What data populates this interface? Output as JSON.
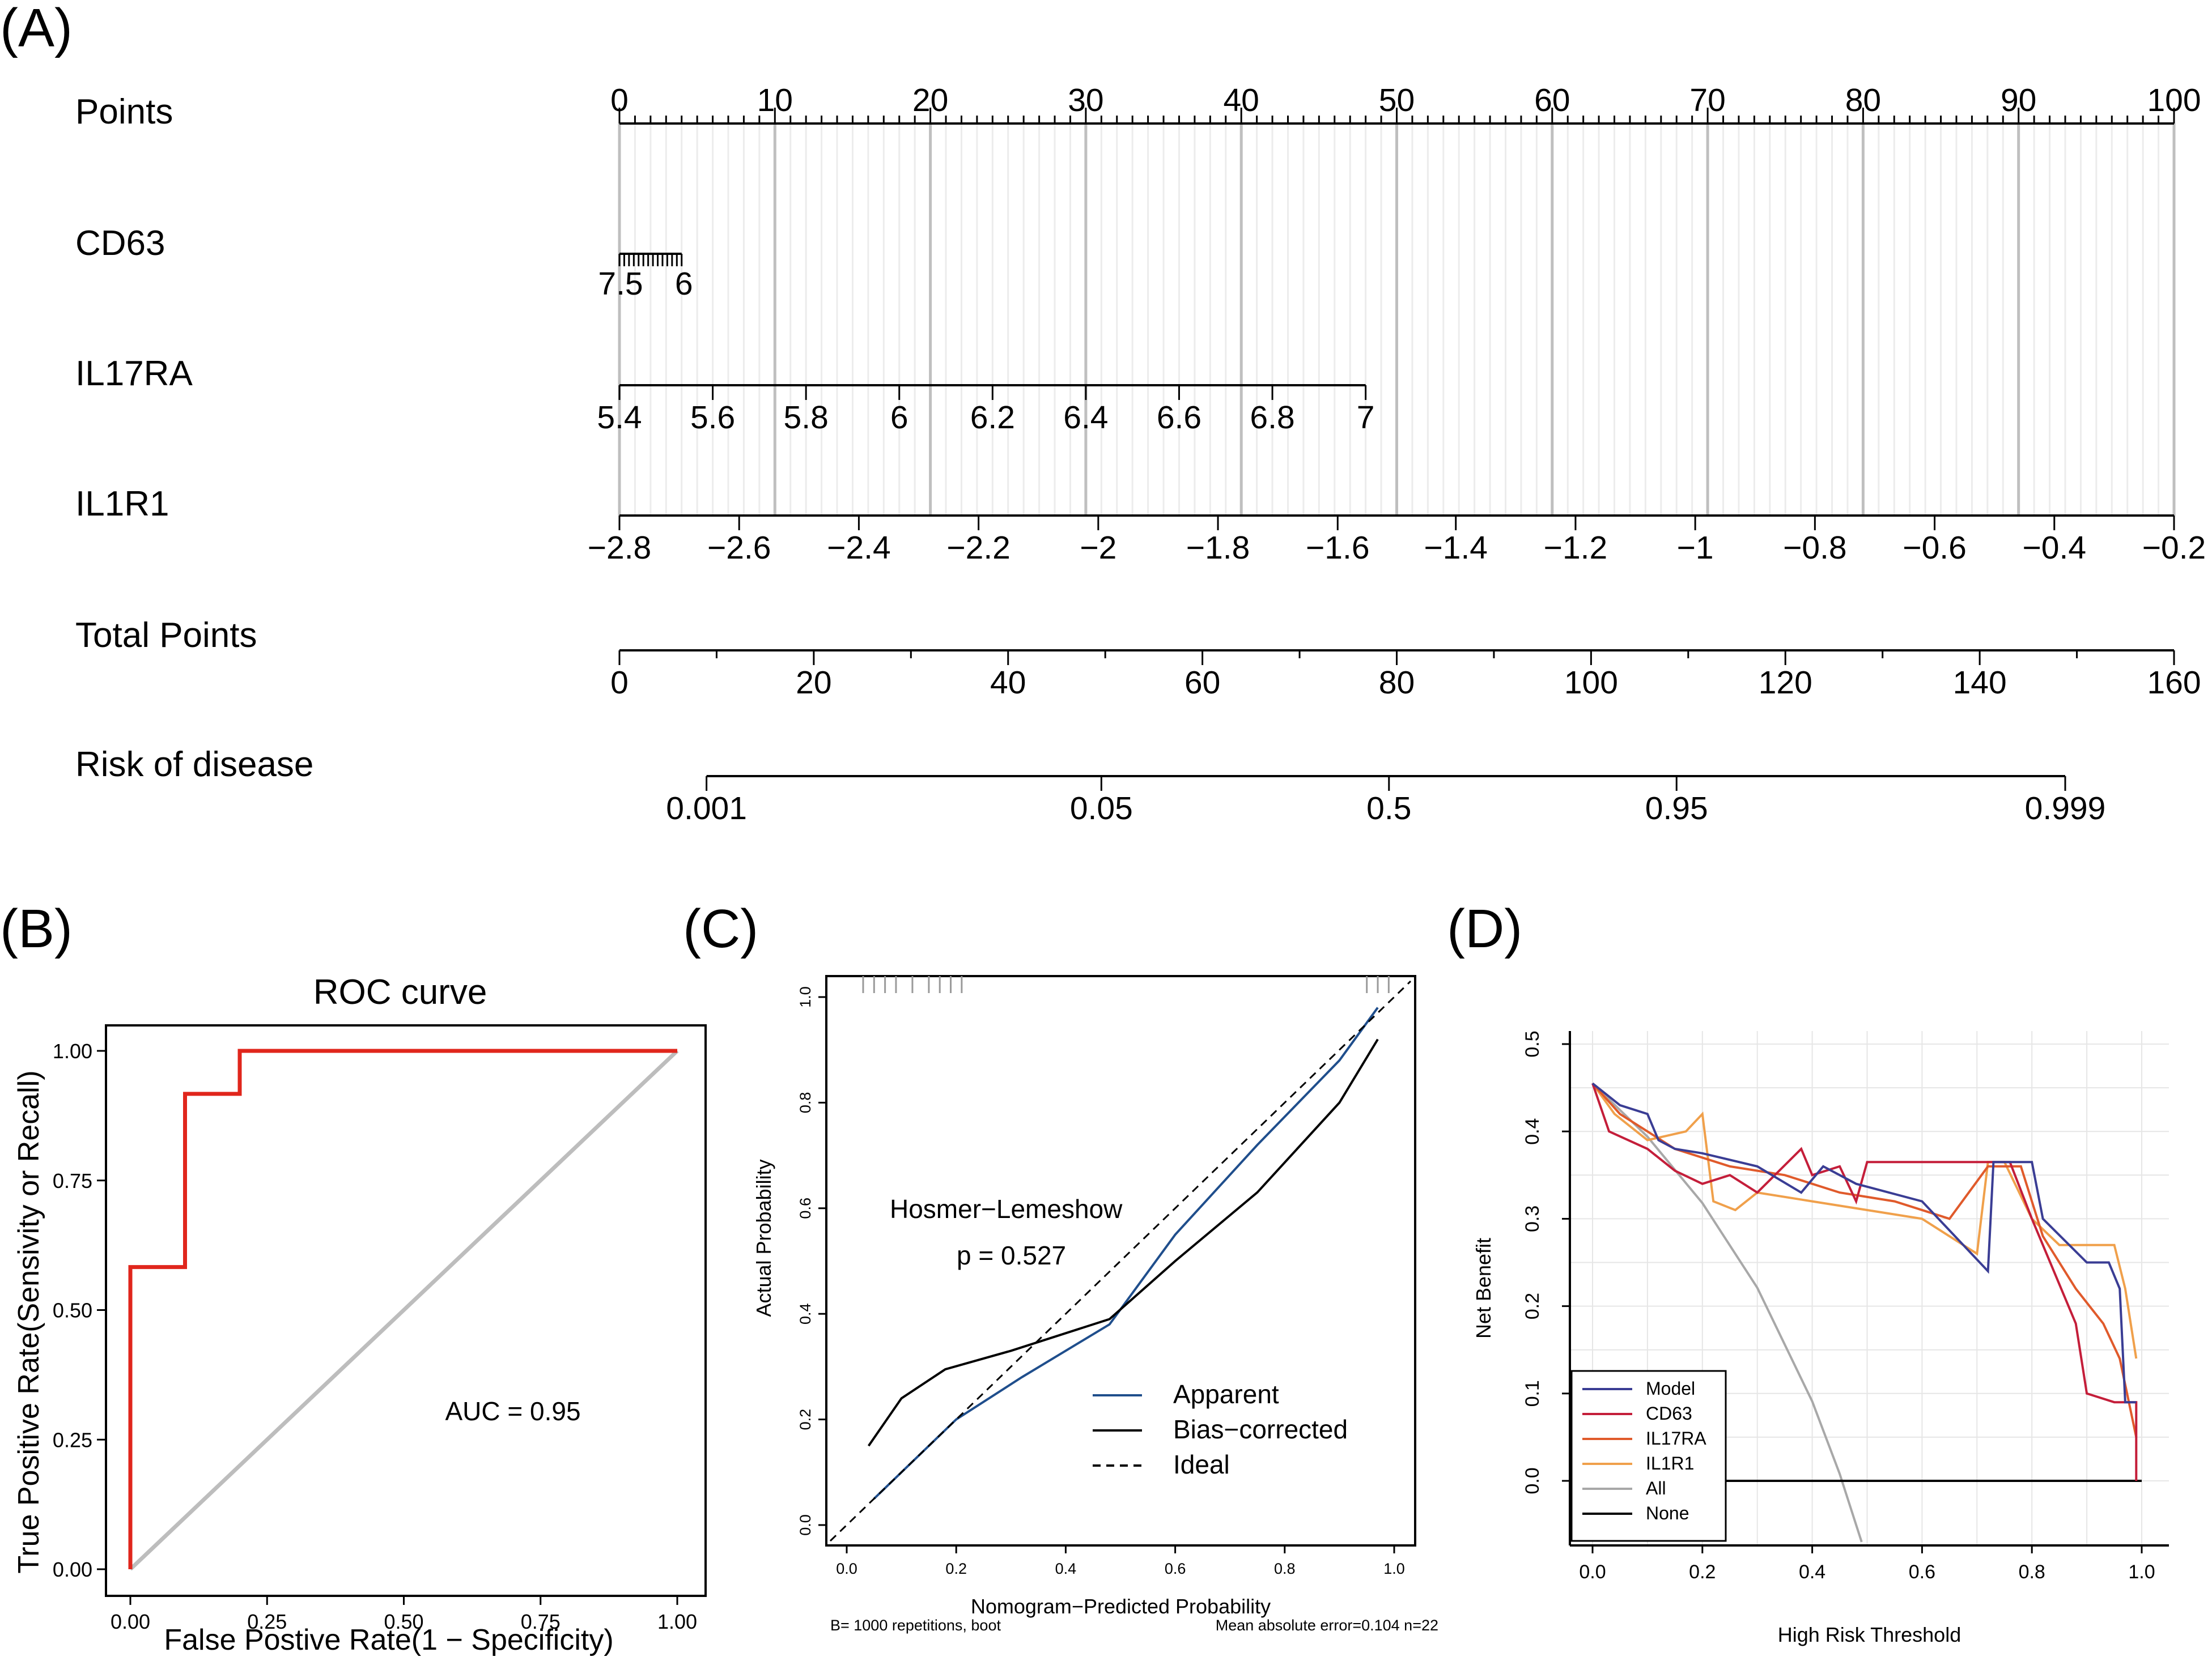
{
  "panels": {
    "a": "(A)",
    "b": "(B)",
    "c": "(C)",
    "d": "(D)"
  },
  "chart_data": [
    {
      "type": "nomogram",
      "panel": "(A)",
      "rows": [
        {
          "label": "Points",
          "range": [
            0,
            100
          ],
          "ticks": [
            "0",
            "10",
            "20",
            "30",
            "40",
            "50",
            "60",
            "70",
            "80",
            "90",
            "100"
          ],
          "tick_points": [
            0,
            10,
            20,
            30,
            40,
            50,
            60,
            70,
            80,
            90,
            100
          ]
        },
        {
          "label": "CD63",
          "ticks": [
            "7.5",
            "6"
          ],
          "tick_points": [
            0,
            4
          ],
          "minor_ticks": 13
        },
        {
          "label": "IL17RA",
          "ticks": [
            "5.4",
            "5.6",
            "5.8",
            "6",
            "6.2",
            "6.4",
            "6.6",
            "6.8",
            "7"
          ],
          "tick_points": [
            0,
            6,
            12,
            18,
            24,
            30,
            36,
            42,
            48
          ]
        },
        {
          "label": "IL1R1",
          "ticks": [
            "−2.8",
            "−2.6",
            "−2.4",
            "−2.2",
            "−2",
            "−1.8",
            "−1.6",
            "−1.4",
            "−1.2",
            "−1",
            "−0.8",
            "−0.6",
            "−0.4",
            "−0.2"
          ],
          "tick_points": [
            0,
            7.7,
            15.4,
            23.1,
            30.8,
            38.5,
            46.2,
            53.8,
            61.5,
            69.2,
            76.9,
            84.6,
            92.3,
            100
          ]
        },
        {
          "label": "Total Points",
          "ticks": [
            "0",
            "20",
            "40",
            "60",
            "80",
            "100",
            "120",
            "140",
            "160"
          ],
          "tick_points": [
            0,
            12.5,
            25,
            37.5,
            50,
            62.5,
            75,
            87.5,
            100
          ]
        },
        {
          "label": "Risk of disease",
          "ticks": [
            "0.001",
            "0.05",
            "0.5",
            "0.95",
            "0.999"
          ],
          "tick_points": [
            5.6,
            31,
            49.5,
            68,
            93
          ]
        }
      ]
    },
    {
      "type": "line",
      "panel": "(B)",
      "title": "ROC curve",
      "xlabel": "False Postive Rate(1 − Specificity)",
      "ylabel": "True Positive Rate(Sensivity or Recall)",
      "xlim": [
        0,
        1
      ],
      "ylim": [
        0,
        1
      ],
      "x_ticks": [
        "0.00",
        "0.25",
        "0.50",
        "0.75",
        "1.00"
      ],
      "y_ticks": [
        "0.00",
        "0.25",
        "0.50",
        "0.75",
        "1.00"
      ],
      "annotation": "AUC = 0.95",
      "series": [
        {
          "name": "ROC",
          "color": "#e0261c",
          "points": [
            [
              0,
              0
            ],
            [
              0,
              0.583
            ],
            [
              0.1,
              0.583
            ],
            [
              0.1,
              0.917
            ],
            [
              0.2,
              0.917
            ],
            [
              0.2,
              1.0
            ],
            [
              1.0,
              1.0
            ]
          ]
        },
        {
          "name": "diagonal",
          "color": "#bdbdbd",
          "points": [
            [
              0,
              0
            ],
            [
              1,
              1
            ]
          ]
        }
      ]
    },
    {
      "type": "line",
      "panel": "(C)",
      "xlabel": "Nomogram−Predicted Probability",
      "ylabel": "Actual Probability",
      "xlim": [
        -0.03,
        1.03
      ],
      "ylim": [
        -0.03,
        1.03
      ],
      "x_ticks": [
        "0.0",
        "0.2",
        "0.4",
        "0.6",
        "0.8",
        "1.0"
      ],
      "y_ticks": [
        "0.0",
        "0.2",
        "0.4",
        "0.6",
        "0.8",
        "1.0"
      ],
      "annotation_1": "Hosmer−Lemeshow",
      "annotation_2": "p = 0.527",
      "footer_left": "B= 1000 repetitions, boot",
      "footer_right": "Mean absolute error=0.104 n=22",
      "rug": [
        0.03,
        0.05,
        0.07,
        0.09,
        0.12,
        0.15,
        0.17,
        0.19,
        0.21,
        0.95,
        0.97,
        0.99
      ],
      "series": [
        {
          "name": "Apparent",
          "style": "solid",
          "color": "#1f4e8c",
          "points": [
            [
              0.05,
              0.05
            ],
            [
              0.2,
              0.2
            ],
            [
              0.32,
              0.28
            ],
            [
              0.48,
              0.38
            ],
            [
              0.6,
              0.55
            ],
            [
              0.75,
              0.72
            ],
            [
              0.9,
              0.88
            ],
            [
              0.97,
              0.98
            ]
          ]
        },
        {
          "name": "Bias−corrected",
          "style": "solid",
          "color": "#000000",
          "points": [
            [
              0.04,
              0.15
            ],
            [
              0.1,
              0.24
            ],
            [
              0.18,
              0.295
            ],
            [
              0.3,
              0.33
            ],
            [
              0.48,
              0.39
            ],
            [
              0.6,
              0.5
            ],
            [
              0.75,
              0.63
            ],
            [
              0.9,
              0.8
            ],
            [
              0.97,
              0.92
            ]
          ]
        },
        {
          "name": "Ideal",
          "style": "dashed",
          "color": "#000000",
          "points": [
            [
              -0.03,
              -0.03
            ],
            [
              1.03,
              1.03
            ]
          ]
        }
      ]
    },
    {
      "type": "line",
      "panel": "(D)",
      "xlabel": "High Risk Threshold",
      "ylabel": "Net Benefit",
      "xlim": [
        -0.04,
        1.04
      ],
      "ylim": [
        -0.07,
        0.51
      ],
      "x_ticks": [
        "0.0",
        "0.2",
        "0.4",
        "0.6",
        "0.8",
        "1.0"
      ],
      "y_ticks": [
        "0.0",
        "0.1",
        "0.2",
        "0.3",
        "0.4",
        "0.5"
      ],
      "series": [
        {
          "name": "Model",
          "color": "#3a3d94",
          "points": [
            [
              0,
              0.455
            ],
            [
              0.05,
              0.43
            ],
            [
              0.1,
              0.42
            ],
            [
              0.12,
              0.39
            ],
            [
              0.15,
              0.38
            ],
            [
              0.2,
              0.375
            ],
            [
              0.3,
              0.36
            ],
            [
              0.38,
              0.33
            ],
            [
              0.42,
              0.36
            ],
            [
              0.48,
              0.34
            ],
            [
              0.6,
              0.32
            ],
            [
              0.72,
              0.24
            ],
            [
              0.73,
              0.365
            ],
            [
              0.8,
              0.365
            ],
            [
              0.82,
              0.3
            ],
            [
              0.9,
              0.25
            ],
            [
              0.94,
              0.25
            ],
            [
              0.96,
              0.22
            ],
            [
              0.97,
              0.09
            ],
            [
              0.99,
              0.09
            ]
          ]
        },
        {
          "name": "CD63",
          "color": "#c41e3a",
          "points": [
            [
              0,
              0.455
            ],
            [
              0.03,
              0.4
            ],
            [
              0.1,
              0.38
            ],
            [
              0.15,
              0.355
            ],
            [
              0.2,
              0.34
            ],
            [
              0.25,
              0.35
            ],
            [
              0.3,
              0.33
            ],
            [
              0.38,
              0.38
            ],
            [
              0.4,
              0.35
            ],
            [
              0.45,
              0.36
            ],
            [
              0.48,
              0.32
            ],
            [
              0.5,
              0.365
            ],
            [
              0.6,
              0.365
            ],
            [
              0.65,
              0.365
            ],
            [
              0.7,
              0.365
            ],
            [
              0.76,
              0.365
            ],
            [
              0.8,
              0.3
            ],
            [
              0.88,
              0.18
            ],
            [
              0.9,
              0.1
            ],
            [
              0.95,
              0.09
            ],
            [
              0.99,
              0.09
            ],
            [
              0.99,
              0.0
            ]
          ]
        },
        {
          "name": "IL17RA",
          "color": "#e05a2b",
          "points": [
            [
              0,
              0.455
            ],
            [
              0.05,
              0.42
            ],
            [
              0.1,
              0.4
            ],
            [
              0.15,
              0.38
            ],
            [
              0.25,
              0.36
            ],
            [
              0.35,
              0.35
            ],
            [
              0.45,
              0.33
            ],
            [
              0.55,
              0.32
            ],
            [
              0.65,
              0.3
            ],
            [
              0.72,
              0.36
            ],
            [
              0.78,
              0.36
            ],
            [
              0.82,
              0.28
            ],
            [
              0.88,
              0.22
            ],
            [
              0.93,
              0.18
            ],
            [
              0.96,
              0.14
            ],
            [
              0.99,
              0.05
            ]
          ]
        },
        {
          "name": "IL1R1",
          "color": "#f0a04b",
          "points": [
            [
              0,
              0.455
            ],
            [
              0.04,
              0.42
            ],
            [
              0.1,
              0.39
            ],
            [
              0.17,
              0.4
            ],
            [
              0.2,
              0.42
            ],
            [
              0.22,
              0.32
            ],
            [
              0.26,
              0.31
            ],
            [
              0.3,
              0.33
            ],
            [
              0.4,
              0.32
            ],
            [
              0.5,
              0.31
            ],
            [
              0.6,
              0.3
            ],
            [
              0.7,
              0.26
            ],
            [
              0.72,
              0.365
            ],
            [
              0.75,
              0.365
            ],
            [
              0.8,
              0.3
            ],
            [
              0.85,
              0.27
            ],
            [
              0.9,
              0.27
            ],
            [
              0.95,
              0.27
            ],
            [
              0.97,
              0.22
            ],
            [
              0.99,
              0.14
            ]
          ]
        },
        {
          "name": "All",
          "color": "#a8a8a8",
          "points": [
            [
              0,
              0.455
            ],
            [
              0.1,
              0.394
            ],
            [
              0.2,
              0.318
            ],
            [
              0.3,
              0.221
            ],
            [
              0.4,
              0.091
            ],
            [
              0.45,
              0.008
            ],
            [
              0.49,
              -0.07
            ]
          ]
        },
        {
          "name": "None",
          "color": "#000000",
          "points": [
            [
              0,
              0
            ],
            [
              1,
              0
            ]
          ]
        }
      ]
    }
  ]
}
